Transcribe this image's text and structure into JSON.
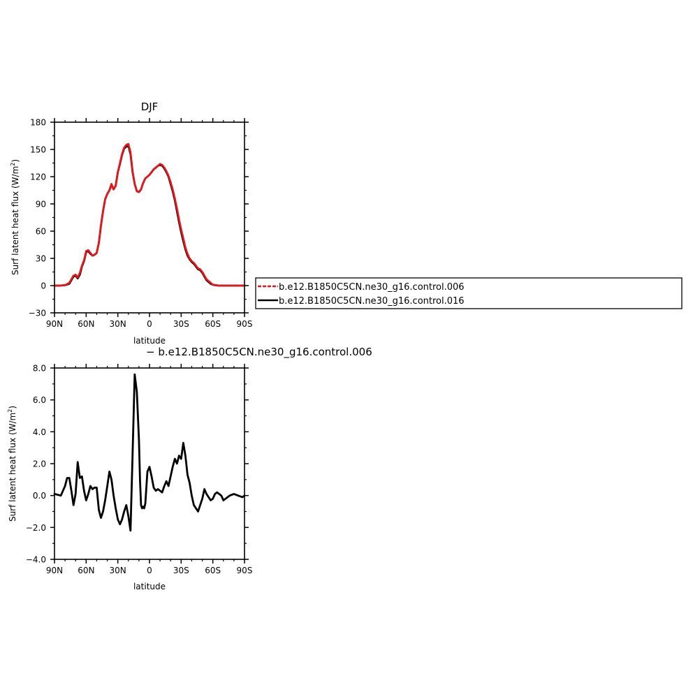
{
  "colors": {
    "axis": "#000000",
    "control006": "#e8161b",
    "control016": "#000000",
    "background": "#ffffff"
  },
  "chart_data": [
    {
      "type": "line",
      "title": "DJF",
      "xlabel": "latitude",
      "ylabel": "Surf latent heat flux (W/m",
      "ylabel_sup": "2",
      "ylabel_close": ")",
      "xlim": [
        90,
        -90
      ],
      "ylim": [
        -30,
        180
      ],
      "xticks": [
        90,
        60,
        30,
        0,
        -30,
        -60,
        -90
      ],
      "xtick_labels": [
        "90N",
        "60N",
        "30N",
        "0",
        "30S",
        "60S",
        "90S"
      ],
      "yticks": [
        -30,
        0,
        30,
        60,
        90,
        120,
        150,
        180
      ],
      "ytick_labels": [
        "−30",
        "0",
        "30",
        "60",
        "90",
        "120",
        "150",
        "180"
      ],
      "grid": false,
      "legend_position": "right",
      "series": [
        {
          "name": "b.e12.B1850C5CN.ne30_g16.control.006",
          "color": "red",
          "dash": true,
          "x": [
            90,
            85,
            80,
            76,
            74,
            72,
            70,
            68,
            66,
            64,
            62,
            60,
            58,
            56,
            54,
            52,
            50,
            48,
            46,
            44,
            42,
            40,
            38,
            36,
            34,
            32,
            30,
            28,
            26,
            24,
            22,
            20,
            18,
            16,
            14,
            12,
            10,
            8,
            6,
            4,
            2,
            0,
            -2,
            -4,
            -6,
            -8,
            -10,
            -12,
            -14,
            -16,
            -18,
            -20,
            -22,
            -24,
            -26,
            -28,
            -30,
            -32,
            -34,
            -36,
            -38,
            -40,
            -42,
            -44,
            -46,
            -48,
            -50,
            -52,
            -54,
            -56,
            -58,
            -60,
            -62,
            -64,
            -66,
            -68,
            -70,
            -72,
            -74,
            -76,
            -78,
            -80,
            -82,
            -84,
            -86,
            -88,
            -90
          ],
          "y": [
            0,
            0,
            0.5,
            3,
            7,
            11,
            12,
            9,
            14,
            22,
            28,
            38,
            39,
            36,
            33,
            34,
            36,
            47,
            66,
            82,
            95,
            101,
            105,
            112,
            106,
            110,
            125,
            135,
            145,
            152,
            155,
            156,
            147,
            126,
            112,
            104,
            103,
            106,
            113,
            118,
            120,
            122,
            125,
            128,
            130,
            132,
            134,
            133,
            130,
            126,
            121,
            114,
            106,
            96,
            85,
            73,
            62,
            52,
            42,
            35,
            30,
            27,
            25,
            22,
            19,
            18,
            15,
            11,
            7,
            5,
            3,
            1,
            0.5,
            0.2,
            0,
            0,
            0,
            0,
            0,
            0,
            0,
            0,
            0,
            0,
            0,
            0,
            0
          ]
        },
        {
          "name": "b.e12.B1850C5CN.ne30_g16.control.016",
          "color": "black",
          "dash": false,
          "x": [
            90,
            85,
            80,
            76,
            74,
            72,
            70,
            68,
            66,
            64,
            62,
            60,
            58,
            56,
            54,
            52,
            50,
            48,
            46,
            44,
            42,
            40,
            38,
            36,
            34,
            32,
            30,
            28,
            26,
            24,
            22,
            20,
            18,
            16,
            14,
            12,
            10,
            8,
            6,
            4,
            2,
            0,
            -2,
            -4,
            -6,
            -8,
            -10,
            -12,
            -14,
            -16,
            -18,
            -20,
            -22,
            -24,
            -26,
            -28,
            -30,
            -32,
            -34,
            -36,
            -38,
            -40,
            -42,
            -44,
            -46,
            -48,
            -50,
            -52,
            -54,
            -56,
            -58,
            -60,
            -62,
            -64,
            -66,
            -68,
            -70,
            -72,
            -74,
            -76,
            -78,
            -80,
            -82,
            -84,
            -86,
            -88,
            -90
          ],
          "y": [
            0,
            0,
            0.5,
            2,
            6,
            10,
            11,
            8,
            12,
            21,
            27,
            37,
            38,
            35,
            33,
            34,
            36,
            47,
            66,
            82,
            95,
            101,
            105,
            111,
            106,
            110,
            125,
            134,
            144,
            151,
            153,
            154,
            145,
            125,
            112,
            104,
            103,
            106,
            113,
            118,
            120,
            122,
            125,
            128,
            130,
            132,
            133,
            132,
            129,
            125,
            120,
            112,
            104,
            94,
            82,
            70,
            59,
            49,
            40,
            33,
            29,
            26,
            24,
            21,
            18,
            17,
            14,
            10,
            6,
            4,
            2,
            1,
            0.5,
            0.2,
            0,
            0,
            0,
            0,
            0,
            0,
            0,
            0,
            0,
            0,
            0,
            0,
            0
          ]
        }
      ]
    },
    {
      "type": "line",
      "title": "− b.e12.B1850C5CN.ne30_g16.control.006",
      "xlabel": "latitude",
      "ylabel": "Surf latent heat flux (W/m",
      "ylabel_sup": "2",
      "ylabel_close": ")",
      "xlim": [
        90,
        -90
      ],
      "ylim": [
        -4,
        8
      ],
      "xticks": [
        90,
        60,
        30,
        0,
        -30,
        -60,
        -90
      ],
      "xtick_labels": [
        "90N",
        "60N",
        "30N",
        "0",
        "30S",
        "60S",
        "90S"
      ],
      "yticks": [
        -4,
        -2,
        0,
        2,
        4,
        6,
        8
      ],
      "ytick_labels": [
        "−4.0",
        "−2.0",
        "0.0",
        "2.0",
        "4.0",
        "6.0",
        "8.0"
      ],
      "grid": false,
      "series": [
        {
          "color": "black",
          "dash": false,
          "x": [
            90,
            84,
            80,
            78,
            76,
            74,
            72,
            70,
            68,
            66,
            64,
            62,
            60,
            58,
            56,
            54,
            52,
            50,
            48,
            46,
            44,
            42,
            40,
            38,
            36,
            34,
            32,
            30,
            28,
            26,
            24,
            22,
            20,
            18,
            16,
            14,
            12,
            10,
            9,
            8,
            7,
            6,
            5,
            4,
            3,
            2,
            0,
            -2,
            -4,
            -6,
            -8,
            -10,
            -12,
            -14,
            -16,
            -18,
            -20,
            -22,
            -24,
            -26,
            -28,
            -30,
            -32,
            -34,
            -36,
            -38,
            -40,
            -42,
            -44,
            -46,
            -48,
            -50,
            -52,
            -54,
            -56,
            -58,
            -60,
            -62,
            -64,
            -66,
            -68,
            -70,
            -72,
            -74,
            -76,
            -80,
            -84,
            -88,
            -90
          ],
          "y": [
            0.1,
            0,
            0.6,
            1.1,
            1.1,
            0.3,
            -0.6,
            0.1,
            2.1,
            1.1,
            1.2,
            0.3,
            -0.3,
            0.1,
            0.6,
            0.4,
            0.5,
            0.5,
            -0.9,
            -1.4,
            -1.0,
            -0.3,
            0.6,
            1.5,
            1.0,
            0.0,
            -0.8,
            -1.5,
            -1.8,
            -1.5,
            -1.0,
            -0.6,
            -1.3,
            -2.2,
            2.6,
            7.6,
            6.5,
            3.5,
            1.0,
            -0.6,
            -0.8,
            -0.7,
            -0.8,
            -0.5,
            0.5,
            1.5,
            1.8,
            1.2,
            0.5,
            0.3,
            0.4,
            0.3,
            0.2,
            0.6,
            0.9,
            0.6,
            1.2,
            1.8,
            2.3,
            2.0,
            2.5,
            2.3,
            3.3,
            2.5,
            1.3,
            0.8,
            0.0,
            -0.6,
            -0.8,
            -1.0,
            -0.6,
            -0.2,
            0.4,
            0.1,
            -0.1,
            -0.3,
            -0.2,
            0.1,
            0.2,
            0.1,
            0.0,
            -0.3,
            -0.2,
            -0.1,
            0.0,
            0.1,
            0.0,
            -0.1,
            0.0
          ]
        }
      ]
    }
  ]
}
